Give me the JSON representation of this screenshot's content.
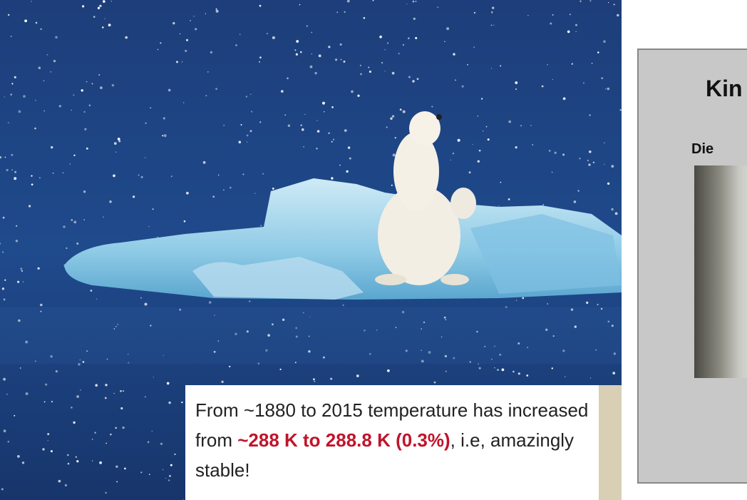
{
  "caption": {
    "text_start": "From ~1880 to 2015 temperature has increased from ",
    "highlight": "~288 K to 288.8 K (0.3%)",
    "text_end": ", i.e,  amazingly stable!"
  },
  "panel": {
    "title": "Kin",
    "subtitle": "Die"
  }
}
